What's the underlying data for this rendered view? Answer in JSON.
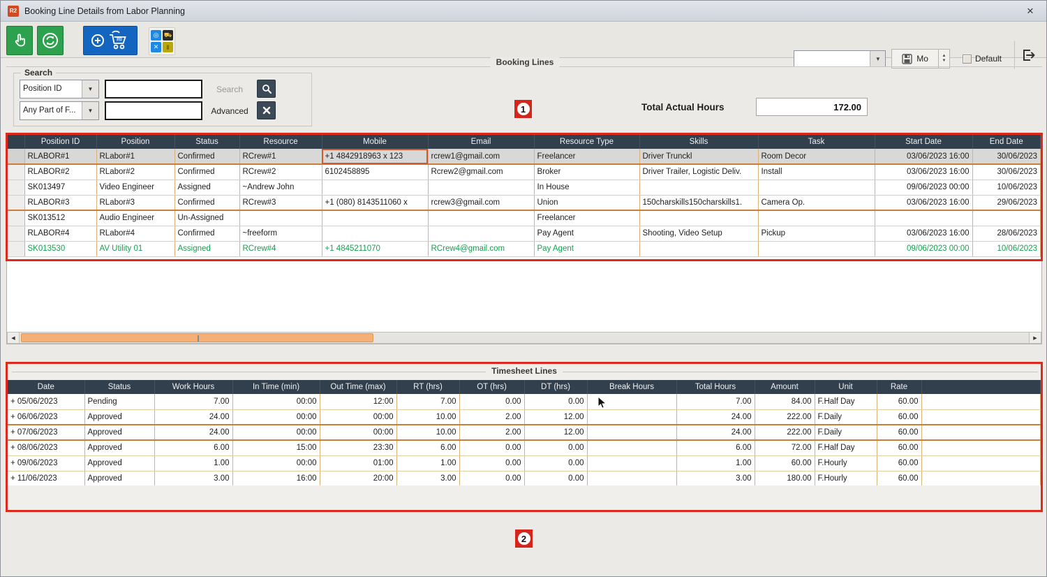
{
  "window": {
    "title": "Booking Line Details from Labor Planning",
    "app_icon_text": "R2",
    "close_glyph": "×"
  },
  "toolbar": {
    "buttons": [
      {
        "name": "select-mode",
        "icon": "hand-pointer-icon"
      },
      {
        "name": "refresh",
        "icon": "refresh-icon"
      },
      {
        "name": "add-to-po-cart",
        "icon": "cart-plus-icon",
        "badge": "PO"
      },
      {
        "name": "apps-grid",
        "icon": "apps-grid-icon"
      }
    ],
    "view_combo_value": "",
    "combo_arrow_glyph": "▼",
    "save_button_label": "Mo",
    "spinner_up_glyph": "▲",
    "spinner_down_glyph": "▼",
    "default_label": "Default"
  },
  "search": {
    "group_label": "Search",
    "field_combo_value": "Position ID",
    "match_combo_value": "Any Part of F...",
    "input1_value": "",
    "input2_value": "",
    "search_button_label": "Search",
    "advanced_label": "Advanced",
    "combo_arrow_glyph": "▼"
  },
  "booking": {
    "group_label": "Booking Lines",
    "marker": "1",
    "total_actual_hours_label": "Total Actual Hours",
    "total_actual_hours_value": "172.00",
    "columns": [
      "",
      "Position ID",
      "Position",
      "Status",
      "Resource",
      "Mobile",
      "Email",
      "Resource Type",
      "Skills",
      "Task",
      "Start Date",
      "End Date"
    ],
    "rows": [
      {
        "cells": [
          "",
          "RLABOR#1",
          "RLabor#1",
          "Confirmed",
          "RCrew#1",
          "+1 4842918963 x 123",
          "rcrew1@gmail.com",
          "Freelancer",
          "Driver Trunckl",
          "Room Decor",
          "03/06/2023 16:00",
          "30/06/2023"
        ],
        "state": "selected sep",
        "focus_cell": 5
      },
      {
        "cells": [
          "",
          "RLABOR#2",
          "RLabor#2",
          "Confirmed",
          "RCrew#2",
          "6102458895",
          "Rcrew2@gmail.com",
          "Broker",
          "Driver Trailer, Logistic Deliv.",
          "Install",
          "03/06/2023 16:00",
          "30/06/2023"
        ],
        "state": ""
      },
      {
        "cells": [
          "",
          "SK013497",
          "Video Engineer",
          "Assigned",
          "~Andrew John",
          "",
          "",
          "In House",
          "",
          "",
          "09/06/2023 00:00",
          "10/06/2023"
        ],
        "state": ""
      },
      {
        "cells": [
          "",
          "RLABOR#3",
          "RLabor#3",
          "Confirmed",
          "RCrew#3",
          "+1 (080) 8143511060 x",
          "rcrew3@gmail.com",
          "Union",
          "150charskills150charskills1.",
          "Camera Op.",
          "03/06/2023 16:00",
          "29/06/2023"
        ],
        "state": "sep"
      },
      {
        "cells": [
          "",
          "SK013512",
          "Audio Engineer",
          "Un-Assigned",
          "",
          "",
          "",
          "Freelancer",
          "",
          "",
          "",
          ""
        ],
        "state": ""
      },
      {
        "cells": [
          "",
          "RLABOR#4",
          "RLabor#4",
          "Confirmed",
          "~freeform",
          "",
          "",
          "Pay Agent",
          "Shooting, Video Setup",
          "Pickup",
          "03/06/2023 16:00",
          "28/06/2023"
        ],
        "state": ""
      },
      {
        "cells": [
          "",
          "SK013530",
          "AV Utility 01",
          "Assigned",
          "RCrew#4",
          "+1 4845211070",
          "RCrew4@gmail.com",
          "Pay Agent",
          "",
          "",
          "09/06/2023 00:00",
          "10/06/2023"
        ],
        "state": "green"
      }
    ]
  },
  "timesheet": {
    "group_label": "Timesheet Lines",
    "marker": "2",
    "columns": [
      "Date",
      "Status",
      "Work Hours",
      "In Time (min)",
      "Out Time (max)",
      "RT (hrs)",
      "OT (hrs)",
      "DT (hrs)",
      "Break Hours",
      "Total Hours",
      "Amount",
      "Unit",
      "Rate",
      ""
    ],
    "rows": [
      {
        "cells": [
          "+ 05/06/2023",
          "Pending",
          "7.00",
          "00:00",
          "12:00",
          "7.00",
          "0.00",
          "0.00",
          "",
          "7.00",
          "84.00",
          "F.Half Day",
          "60.00",
          ""
        ],
        "state": ""
      },
      {
        "cells": [
          "+ 06/06/2023",
          "Approved",
          "24.00",
          "00:00",
          "00:00",
          "10.00",
          "2.00",
          "12.00",
          "",
          "24.00",
          "222.00",
          "F.Daily",
          "60.00",
          ""
        ],
        "state": "sep"
      },
      {
        "cells": [
          "+ 07/06/2023",
          "Approved",
          "24.00",
          "00:00",
          "00:00",
          "10.00",
          "2.00",
          "12.00",
          "",
          "24.00",
          "222.00",
          "F.Daily",
          "60.00",
          ""
        ],
        "state": "sep"
      },
      {
        "cells": [
          "+ 08/06/2023",
          "Approved",
          "6.00",
          "15:00",
          "23:30",
          "6.00",
          "0.00",
          "0.00",
          "",
          "6.00",
          "72.00",
          "F.Half Day",
          "60.00",
          ""
        ],
        "state": ""
      },
      {
        "cells": [
          "+ 09/06/2023",
          "Approved",
          "1.00",
          "00:00",
          "01:00",
          "1.00",
          "0.00",
          "0.00",
          "",
          "1.00",
          "60.00",
          "F.Hourly",
          "60.00",
          ""
        ],
        "state": ""
      },
      {
        "cells": [
          "+ 11/06/2023",
          "Approved",
          "3.00",
          "16:00",
          "20:00",
          "3.00",
          "0.00",
          "0.00",
          "",
          "3.00",
          "180.00",
          "F.Hourly",
          "60.00",
          ""
        ],
        "state": ""
      }
    ]
  },
  "scrollbar": {
    "left_arrow_glyph": "◀",
    "right_arrow_glyph": "▶"
  },
  "colors": {
    "annotation_red": "#dd2a1e",
    "grid_header_bg": "#323f4d",
    "grid_line": "#d8b27a",
    "selected_row_bg": "#d8d8d8",
    "green_row_text": "#16a14f",
    "scroll_thumb": "#f4b077",
    "toolbar_green": "#2da14d",
    "toolbar_blue": "#1465c0",
    "marker_red": "#d6251a"
  }
}
